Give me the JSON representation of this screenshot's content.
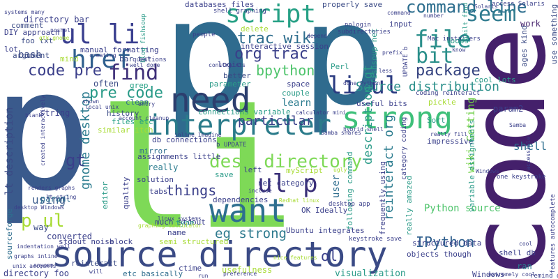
{
  "words": [
    {
      "text": "p",
      "color": "#2f6b8e"
    },
    {
      "text": "p",
      "color": "#2f6b8e"
    },
    {
      "text": "p",
      "color": "#3a5a8c"
    },
    {
      "text": "li",
      "color": "#7ed957"
    },
    {
      "text": "code",
      "color": "#44206b"
    },
    {
      "text": "need",
      "color": "#2c3e6e"
    },
    {
      "text": "source directory",
      "color": "#3a4a85"
    },
    {
      "text": "want",
      "color": "#2e6f8f"
    },
    {
      "text": "strong",
      "color": "#3ec07a"
    },
    {
      "text": "interpreter",
      "color": "#2a7b8a"
    },
    {
      "text": "script",
      "color": "#26a085"
    },
    {
      "text": "ul li",
      "color": "#3a3f8f"
    },
    {
      "text": "file",
      "color": "#2a8f8b"
    },
    {
      "text": "command line",
      "color": "#2d6e8e"
    },
    {
      "text": "href",
      "color": "#2f5f8e"
    },
    {
      "text": "find",
      "color": "#3e2f78"
    },
    {
      "text": "li ul",
      "color": "#2a3a80"
    },
    {
      "text": "seem",
      "color": "#2e7a8e"
    },
    {
      "text": "bit",
      "color": "#2a8f8a"
    },
    {
      "text": "ul p",
      "color": "#3a2f78"
    },
    {
      "text": "dest directory",
      "color": "#7ed957"
    },
    {
      "text": "package",
      "color": "#34427f"
    },
    {
      "text": "Source distribution",
      "color": "#2a8f8a"
    },
    {
      "text": "code pre",
      "color": "#3b3f8a"
    },
    {
      "text": "pre code",
      "color": "#2a9b88"
    },
    {
      "text": "trac wiki",
      "color": "#2f6e8e"
    },
    {
      "text": "org trac",
      "color": "#3a3f8a"
    },
    {
      "text": "bpython",
      "color": "#4ec46b"
    },
    {
      "text": "particular",
      "color": "#3a3f8a"
    },
    {
      "text": "gnome desktop",
      "color": "#2a7b8e"
    },
    {
      "text": "things",
      "color": "#3a3f8a"
    },
    {
      "text": "eg strong",
      "color": "#2e7a8e"
    },
    {
      "text": "p ul",
      "color": "#a8db34"
    },
    {
      "text": "IPython",
      "color": "#2f5f8e"
    },
    {
      "text": "reinteract org",
      "color": "#2a7b8e"
    },
    {
      "text": "description gt",
      "color": "#2a9b88"
    },
    {
      "text": "lt description",
      "color": "#3a4a85"
    },
    {
      "text": "shell",
      "color": "#2e6f8f"
    },
    {
      "text": "Python source",
      "color": "#4ec46b"
    },
    {
      "text": "gt",
      "color": "#3a3f8a"
    },
    {
      "text": "using",
      "color": "#3e5f8e"
    },
    {
      "text": "wiki Getting",
      "color": "#6fcf47"
    },
    {
      "text": "ol",
      "color": "#3a3f8a"
    },
    {
      "text": "bash",
      "color": "#3a4a85"
    },
    {
      "text": "work",
      "color": "#44206b"
    },
    {
      "text": "mirror",
      "color": "#2f6e8e"
    },
    {
      "text": "learn",
      "color": "#2a7b8e"
    },
    {
      "text": "user",
      "color": "#2f6e8e"
    },
    {
      "text": "left",
      "color": "#3a3f8a"
    },
    {
      "text": "really",
      "color": "#2a7b8e"
    },
    {
      "text": "block",
      "color": "#3a3f8a"
    },
    {
      "text": "ran",
      "color": "#2a7b8e"
    },
    {
      "text": "visualization",
      "color": "#2a9b88"
    },
    {
      "text": "directory foo",
      "color": "#3a3f8a"
    },
    {
      "text": "reinteract",
      "color": "#3a4a85"
    },
    {
      "text": "etc basically",
      "color": "#2f6e8e"
    },
    {
      "text": "usefulness",
      "color": "#a8db34"
    },
    {
      "text": "Windows",
      "color": "#3a3f8a"
    },
    {
      "text": "sourceforge",
      "color": "#2f6e8e"
    },
    {
      "text": "converted",
      "color": "#3a3f8a"
    },
    {
      "text": "way",
      "color": "#3a4a85"
    },
    {
      "text": "paraml",
      "color": "#2e6f8f"
    },
    {
      "text": "structured data",
      "color": "#3a3f8a"
    },
    {
      "text": "param2",
      "color": "#3a3f8a"
    },
    {
      "text": "pickle",
      "color": "#a8db34"
    },
    {
      "text": "often",
      "color": "#3a4a85"
    },
    {
      "text": "grep",
      "color": "#26a085"
    },
    {
      "text": "clean",
      "color": "#2f6e8e"
    },
    {
      "text": "history",
      "color": "#3a4a85"
    },
    {
      "text": "files etc",
      "color": "#26a085"
    },
    {
      "text": "similar itch",
      "color": "#a8db34"
    },
    {
      "text": "string",
      "color": "#3a3f8a"
    },
    {
      "text": "argument",
      "color": "#3a4a85"
    },
    {
      "text": "lot",
      "color": "#3a3f8a"
    },
    {
      "text": "foo txt",
      "color": "#3a4a85"
    },
    {
      "text": "DIY approach",
      "color": "#3a3f8a"
    },
    {
      "text": "comment",
      "color": "#3a4a85"
    },
    {
      "text": "directory bar",
      "color": "#3a3f8a"
    },
    {
      "text": "databases files",
      "color": "#3a3f8a"
    },
    {
      "text": "properly save",
      "color": "#3a4a85"
    },
    {
      "text": "manual formatting",
      "color": "#3a3f8a"
    },
    {
      "text": "bar txt",
      "color": "#3a4a85"
    },
    {
      "text": "mind",
      "color": "#a8db34"
    },
    {
      "text": "delete",
      "color": "#a8db34"
    },
    {
      "text": "interactive session",
      "color": "#3a3f8a"
    },
    {
      "text": "Perl",
      "color": "#2a9b88"
    },
    {
      "text": "input",
      "color": "#3a3f8a"
    },
    {
      "text": "loops",
      "color": "#2a9b88"
    },
    {
      "text": "logic",
      "color": "#3a3f8a"
    },
    {
      "text": "better",
      "color": "#3a4a85"
    },
    {
      "text": "parameter",
      "color": "#2a9b88"
    },
    {
      "text": "space",
      "color": "#3a3f8a"
    },
    {
      "text": "couple",
      "color": "#2a9b88"
    },
    {
      "text": "useful bits",
      "color": "#3a3f8a"
    },
    {
      "text": "connections variable",
      "color": "#2a9b88"
    },
    {
      "text": "db connections",
      "color": "#3a3f8a"
    },
    {
      "text": "Sort",
      "color": "#2a9b88"
    },
    {
      "text": "impressive",
      "color": "#3a3f8a"
    },
    {
      "text": "variable assignments",
      "color": "#2a9b88"
    },
    {
      "text": "assignments little",
      "color": "#3a3f8a"
    },
    {
      "text": "myScript",
      "color": "#a8db34"
    },
    {
      "text": "solution",
      "color": "#3a3f8a"
    },
    {
      "text": "save",
      "color": "#2a9b88"
    },
    {
      "text": "tabs",
      "color": "#3a3f8a"
    },
    {
      "text": "net category",
      "color": "#3a3f8a"
    },
    {
      "text": "dependencies",
      "color": "#3a3f8a"
    },
    {
      "text": "following command",
      "color": "#2a9b88"
    },
    {
      "text": "frequently using",
      "color": "#3a3f8a"
    },
    {
      "text": "much stdout",
      "color": "#3a3f8a"
    },
    {
      "text": "type",
      "color": "#2a9b88"
    },
    {
      "text": "name",
      "color": "#3a3f8a"
    },
    {
      "text": "semi structured",
      "color": "#a8db34"
    },
    {
      "text": "stdout noise",
      "color": "#3a3f8a"
    },
    {
      "text": "editor",
      "color": "#2a9b88"
    },
    {
      "text": "quality",
      "color": "#3a3f8a"
    },
    {
      "text": "ctime",
      "color": "#3a3f8a"
    },
    {
      "text": "OK Ideally",
      "color": "#3a3f8a"
    },
    {
      "text": "shell db",
      "color": "#3a3f8a"
    },
    {
      "text": "Ubuntu integrates",
      "color": "#3a3f8a"
    },
    {
      "text": "objects though",
      "color": "#3a3f8a"
    },
    {
      "text": "use something",
      "color": "#3a4a85"
    },
    {
      "text": "ages kind",
      "color": "#3a4a85"
    },
    {
      "text": "cool lots",
      "color": "#2a9b88"
    },
    {
      "text": "Mac installers",
      "color": "#3a3f8a"
    },
    {
      "text": "access Solaris",
      "color": "#3a3f8a"
    },
    {
      "text": "Built find",
      "color": "#2a9b88"
    },
    {
      "text": "really amazed",
      "color": "#2a9b88"
    },
    {
      "text": "category coding",
      "color": "#3a3f8a"
    },
    {
      "text": "coding reinteract",
      "color": "#3a3f8a"
    },
    {
      "text": "UPDATE b",
      "color": "#3a3f8a"
    },
    {
      "text": "b UPDATE",
      "color": "#3a3f8a"
    },
    {
      "text": "fishsoup net",
      "color": "#2a9b88"
    },
    {
      "text": "nologin",
      "color": "#3a3f8a"
    },
    {
      "text": "subdirectories",
      "color": "#3a3f8a"
    },
    {
      "text": "blog fishsoup",
      "color": "#2a9b88"
    },
    {
      "text": "shell graphing",
      "color": "#3a3f8a"
    },
    {
      "text": "people",
      "color": "#3a3f8a"
    },
    {
      "text": "questions",
      "color": "#3a3f8a"
    },
    {
      "text": "desktop app",
      "color": "#3a3f8a"
    },
    {
      "text": "keystroke save",
      "color": "#3a3f8a"
    },
    {
      "text": "one keystroke",
      "color": "#3a3f8a"
    },
    {
      "text": "features autocomplete",
      "color": "#3a3f8a"
    },
    {
      "text": "remind one",
      "color": "#3a3f8a"
    },
    {
      "text": "extremely cool",
      "color": "#3a3f8a"
    },
    {
      "text": "preference",
      "color": "#3a3f8a"
    },
    {
      "text": "renders graphs",
      "color": "#3a3f8a"
    },
    {
      "text": "indentation well",
      "color": "#3a3f8a"
    },
    {
      "text": "desktop Windows",
      "color": "#3a3f8a"
    },
    {
      "text": "unix accounts",
      "color": "#3a3f8a"
    },
    {
      "text": "graphs inline",
      "color": "#3a3f8a"
    },
    {
      "text": "Samba shares",
      "color": "#3a3f8a"
    },
    {
      "text": "hybrid shell",
      "color": "#3a3f8a"
    },
    {
      "text": "calculator mini",
      "color": "#3a3f8a"
    },
    {
      "text": "done Python",
      "color": "#3a3f8a"
    },
    {
      "text": "linux systems",
      "color": "#3a3f8a"
    },
    {
      "text": "nice features",
      "color": "#a8db34"
    },
    {
      "text": "Redhat linux",
      "color": "#a8db34"
    },
    {
      "text": "created interactively",
      "color": "#3a3f8a"
    },
    {
      "text": "local unix",
      "color": "#3a3f8a"
    },
    {
      "text": "account cleanup",
      "color": "#3a3f8a"
    },
    {
      "text": "inline Imagine",
      "color": "#3a3f8a"
    },
    {
      "text": "graphing calculator",
      "color": "#a8db34"
    },
    {
      "text": "well done",
      "color": "#3a3f8a"
    },
    {
      "text": "systems many",
      "color": "#3a3f8a"
    },
    {
      "text": "constraints",
      "color": "#3a3f8a"
    },
    {
      "text": "lt string",
      "color": "#3a3f8a"
    },
    {
      "text": "gtk gnome",
      "color": "#a8db34"
    },
    {
      "text": "noshell",
      "color": "#3a3f8a"
    },
    {
      "text": "creating",
      "color": "#3a3f8a"
    },
    {
      "text": "really fill",
      "color": "#3a3f8a"
    },
    {
      "text": "command",
      "color": "#3a3f8a"
    },
    {
      "text": "number",
      "color": "#3a3f8a"
    },
    {
      "text": "know",
      "color": "#3a3f8a"
    },
    {
      "text": "less",
      "color": "#3a3f8a"
    },
    {
      "text": "prefix",
      "color": "#3a3f8a"
    },
    {
      "text": "depend",
      "color": "#3a3f8a"
    },
    {
      "text": "Samba",
      "color": "#3a3f8a"
    },
    {
      "text": "include",
      "color": "#3a3f8a"
    },
    {
      "text": "ugly",
      "color": "#a8db34"
    },
    {
      "text": "will",
      "color": "#3a3f8a"
    },
    {
      "text": "shown",
      "color": "#3a3f8a"
    },
    {
      "text": "entry",
      "color": "#3a3f8a"
    },
    {
      "text": "blank",
      "color": "#3a3f8a"
    },
    {
      "text": "anyone",
      "color": "#3a3f8a"
    },
    {
      "text": "run",
      "color": "#3a3f8a"
    },
    {
      "text": "Solaris",
      "color": "#3a3f8a"
    },
    {
      "text": "Windows",
      "color": "#3a3f8a"
    },
    {
      "text": "accessible",
      "color": "#3a3f8a"
    },
    {
      "text": "cool",
      "color": "#3a3f8a"
    }
  ]
}
